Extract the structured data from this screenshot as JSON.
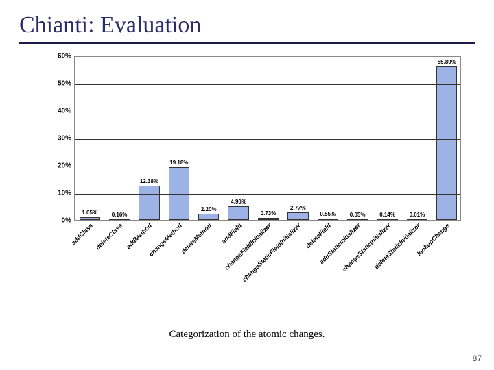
{
  "title": "Chianti: Evaluation",
  "caption": "Categorization of the atomic changes.",
  "page_number": "87",
  "chart": {
    "type": "bar",
    "ymax": 60,
    "ytick_step": 10,
    "ytick_suffix": "%",
    "bar_color": "#9db3e6",
    "bar_border_color": "#333333",
    "grid_color": "#333333",
    "plot_border_color": "#888888",
    "background_color": "#ffffff",
    "label_fontsize": 9,
    "value_fontsize": 8,
    "axis_fontsize": 10,
    "categories": [
      "addClass",
      "deleteClass",
      "addMethod",
      "changeMethod",
      "deleteMethod",
      "addField",
      "changeFieldInitializer",
      "changeStaticFieldInitializer",
      "deleteField",
      "addStaticInitializer",
      "changeStaticInitializer",
      "deleteStaticInitializer",
      "lookupChange"
    ],
    "values": [
      1.05,
      0.16,
      12.38,
      19.18,
      2.2,
      4.9,
      0.73,
      2.77,
      0.55,
      0.05,
      0.14,
      0.01,
      55.89
    ],
    "value_labels": [
      "1.05%",
      "0.16%",
      "12.38%",
      "19.18%",
      "2.20%",
      "4.90%",
      "0.73%",
      "2.77%",
      "0.55%",
      "0.05%",
      "0.14%",
      "0.01%",
      "55.89%"
    ]
  }
}
